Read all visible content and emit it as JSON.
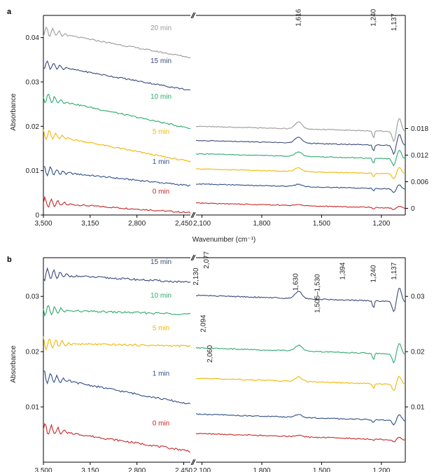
{
  "chart_data": [
    {
      "panel": "a",
      "type": "line",
      "ylabel": "Absorbance",
      "xlabel": "Wavenumber (cm⁻¹)",
      "left_ylim": [
        0,
        0.045
      ],
      "left_yticks": [
        "0",
        "0.01",
        "0.02",
        "0.03",
        "0.04"
      ],
      "right_yticks": [
        "0",
        "0.006",
        "0.012",
        "0.018"
      ],
      "left_x_ticks": [
        "3,500",
        "3,150",
        "2,800",
        "2,450"
      ],
      "right_x_ticks": [
        "2,100",
        "1,800",
        "1,500",
        "1,200"
      ],
      "left_xlim": [
        3500,
        2400
      ],
      "right_xlim": [
        2130,
        1080
      ],
      "annotations": [
        "1,616",
        "1,240",
        "1,137"
      ],
      "series": [
        {
          "name": "0 min",
          "color": "#c62828",
          "left_start": 0.0028,
          "left_end": 0.0005,
          "right_offset": 0.0015
        },
        {
          "name": "1 min",
          "color": "#2f4f86",
          "left_start": 0.01,
          "left_end": 0.0066,
          "right_offset": 0.0058
        },
        {
          "name": "5 min",
          "color": "#f2b705",
          "left_start": 0.0183,
          "left_end": 0.012,
          "right_offset": 0.0092
        },
        {
          "name": "10 min",
          "color": "#2eaa6e",
          "left_start": 0.0265,
          "left_end": 0.0195,
          "right_offset": 0.0126
        },
        {
          "name": "15 min",
          "color": "#3a4a7a",
          "left_start": 0.034,
          "left_end": 0.0281,
          "right_offset": 0.0156
        },
        {
          "name": "20 min",
          "color": "#9a9a9a",
          "left_start": 0.0415,
          "left_end": 0.0355,
          "right_offset": 0.0188
        }
      ]
    },
    {
      "panel": "b",
      "type": "line",
      "ylabel": "Absorbance",
      "left_ylim": [
        0,
        0.037
      ],
      "left_yticks": [
        "0.01",
        "0.02",
        "0.03"
      ],
      "right_yticks": [
        "0.01",
        "0.02",
        "0.03"
      ],
      "left_x_ticks": [
        "3,500",
        "3,150",
        "2,800",
        "2,450"
      ],
      "right_x_ticks": [
        "2,100",
        "1,800",
        "1,500",
        "1,200"
      ],
      "left_xlim": [
        3500,
        2400
      ],
      "right_xlim": [
        2130,
        1080
      ],
      "annotations": [
        "2,130",
        "2,077",
        "1,630",
        "1,505–1,530",
        "1,394",
        "1,240",
        "1,137",
        "2,094",
        "2,060"
      ],
      "series": [
        {
          "name": "0 min",
          "color": "#c62828",
          "left_start": 0.006,
          "left_end": 0.002,
          "right_offset": 0.004
        },
        {
          "name": "1 min",
          "color": "#2f4f86",
          "left_start": 0.0155,
          "left_end": 0.0105,
          "right_offset": 0.0075
        },
        {
          "name": "5 min",
          "color": "#f2b705",
          "left_start": 0.0215,
          "left_end": 0.021,
          "right_offset": 0.014
        },
        {
          "name": "10 min",
          "color": "#2eaa6e",
          "left_start": 0.0275,
          "left_end": 0.0268,
          "right_offset": 0.0195
        },
        {
          "name": "15 min",
          "color": "#3a4a7a",
          "left_start": 0.034,
          "left_end": 0.0325,
          "right_offset": 0.029
        }
      ]
    }
  ],
  "labels": {
    "panel_a": "a",
    "panel_b": "b",
    "ylabel": "Absorbance",
    "xlabel": "Wavenumber (cm⁻¹)"
  }
}
